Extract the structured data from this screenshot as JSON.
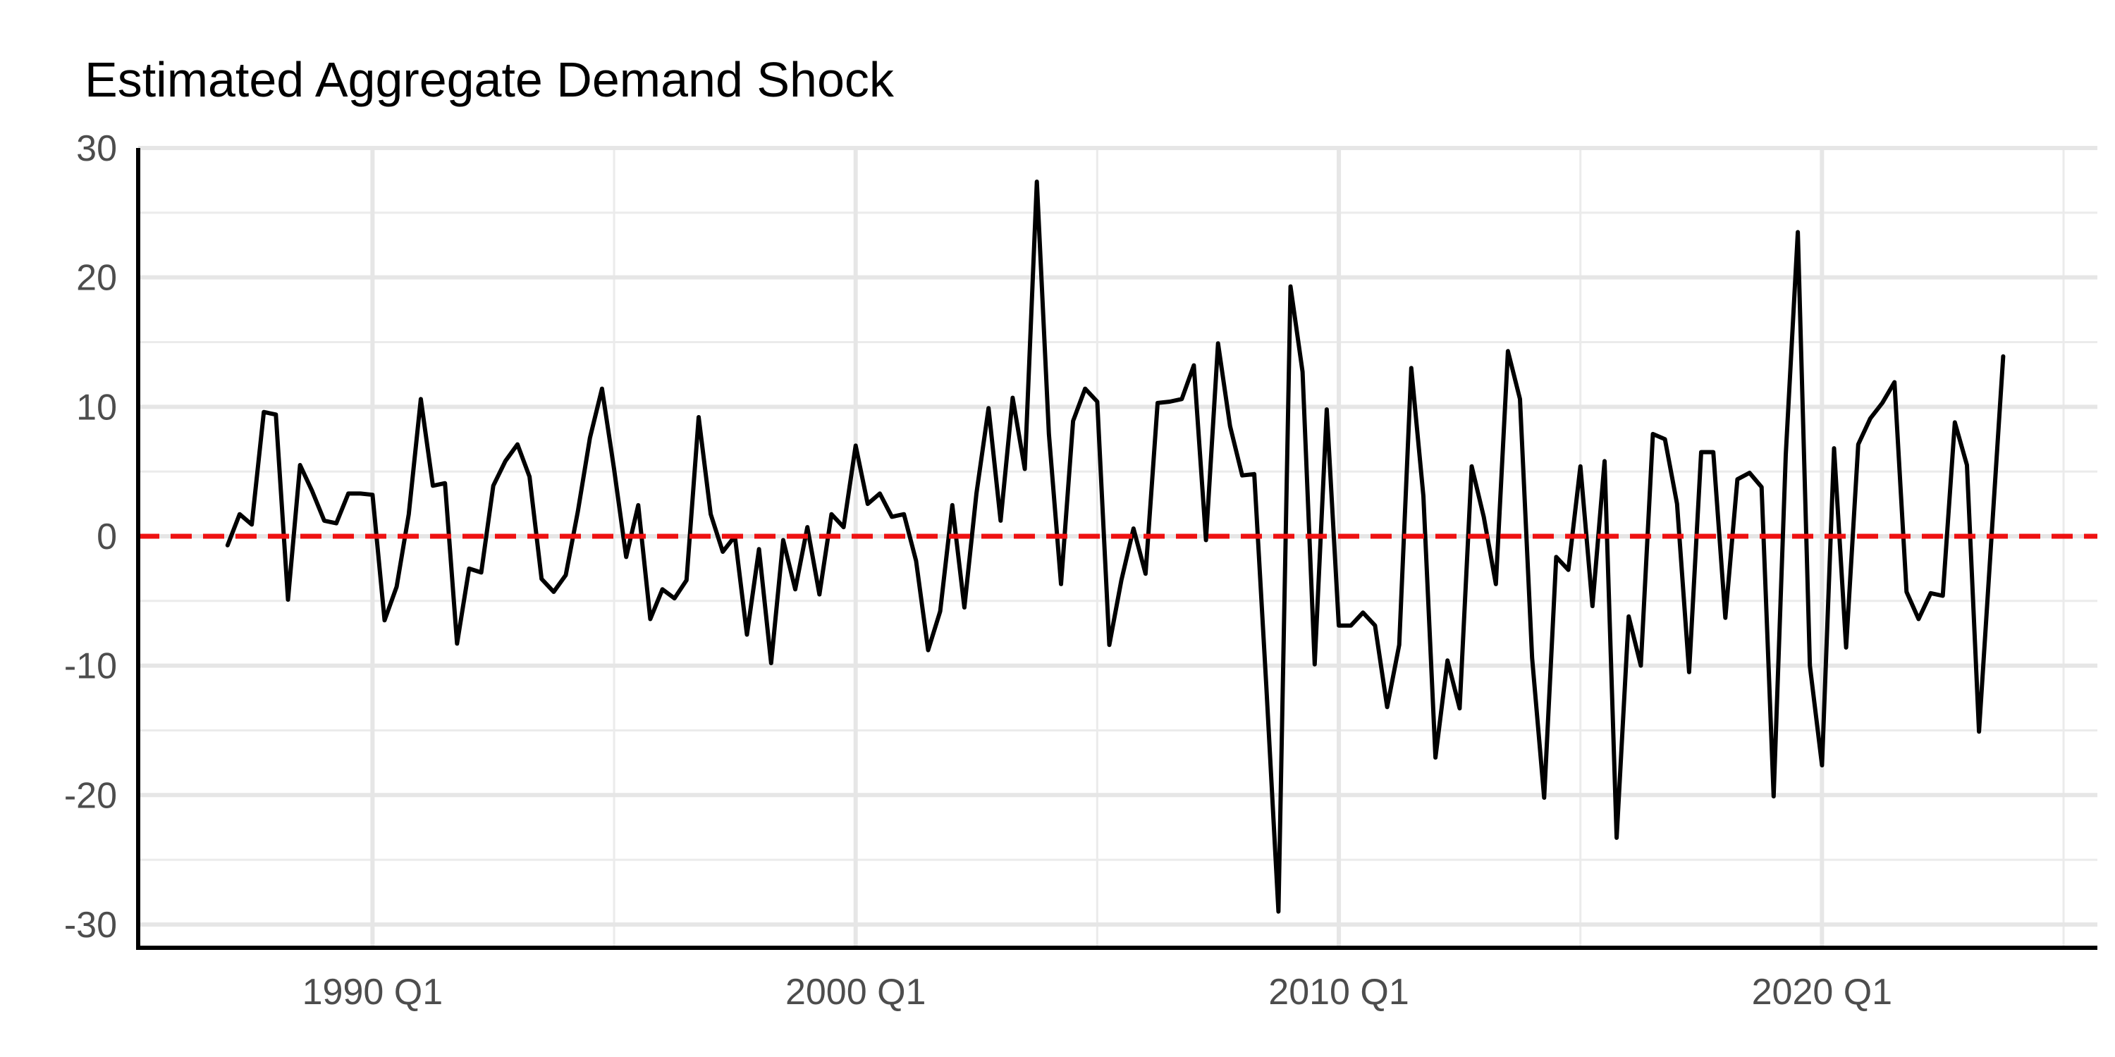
{
  "chart_data": {
    "type": "line",
    "title": "Estimated Aggregate Demand Shock",
    "xlabel": "",
    "ylabel": "",
    "xlim": [
      1985.15,
      2025.7
    ],
    "ylim": [
      -31.8,
      30
    ],
    "x_ticks": [
      {
        "value": 1990.0,
        "label": "1990 Q1"
      },
      {
        "value": 2000.0,
        "label": "2000 Q1"
      },
      {
        "value": 2010.0,
        "label": "2010 Q1"
      },
      {
        "value": 2020.0,
        "label": "2020 Q1"
      }
    ],
    "x_minor_ticks": [
      1995.0,
      2005.0,
      2015.0,
      2025.0
    ],
    "y_ticks": [
      {
        "value": 30,
        "label": "30"
      },
      {
        "value": 20,
        "label": "20"
      },
      {
        "value": 10,
        "label": "10"
      },
      {
        "value": 0,
        "label": "0"
      },
      {
        "value": -10,
        "label": "-10"
      },
      {
        "value": -20,
        "label": "-20"
      },
      {
        "value": -30,
        "label": "-30"
      }
    ],
    "y_minor_ticks": [
      25,
      15,
      5,
      -5,
      -15,
      -25
    ],
    "grid": true,
    "reference_line": {
      "y": 0,
      "color": "#ee1111",
      "style": "dashed"
    },
    "series": [
      {
        "color": "#000000",
        "points": [
          [
            1987.0,
            -0.7
          ],
          [
            1987.25,
            1.7
          ],
          [
            1987.5,
            0.9
          ],
          [
            1987.75,
            9.6
          ],
          [
            1988.0,
            9.4
          ],
          [
            1988.25,
            -4.9
          ],
          [
            1988.5,
            5.5
          ],
          [
            1988.75,
            3.5
          ],
          [
            1989.0,
            1.2
          ],
          [
            1989.25,
            1.0
          ],
          [
            1989.5,
            3.3
          ],
          [
            1989.75,
            3.3
          ],
          [
            1990.0,
            3.2
          ],
          [
            1990.25,
            -6.5
          ],
          [
            1990.5,
            -3.9
          ],
          [
            1990.75,
            1.7
          ],
          [
            1991.0,
            10.6
          ],
          [
            1991.25,
            3.9
          ],
          [
            1991.5,
            4.1
          ],
          [
            1991.75,
            -8.3
          ],
          [
            1992.0,
            -2.5
          ],
          [
            1992.25,
            -2.8
          ],
          [
            1992.5,
            3.9
          ],
          [
            1992.75,
            5.8
          ],
          [
            1993.0,
            7.1
          ],
          [
            1993.25,
            4.6
          ],
          [
            1993.5,
            -3.3
          ],
          [
            1993.75,
            -4.3
          ],
          [
            1994.0,
            -3.0
          ],
          [
            1994.25,
            1.9
          ],
          [
            1994.5,
            7.6
          ],
          [
            1994.75,
            11.4
          ],
          [
            1995.0,
            5.2
          ],
          [
            1995.25,
            -1.6
          ],
          [
            1995.5,
            2.4
          ],
          [
            1995.75,
            -6.4
          ],
          [
            1996.0,
            -4.1
          ],
          [
            1996.25,
            -4.8
          ],
          [
            1996.5,
            -3.4
          ],
          [
            1996.75,
            9.2
          ],
          [
            1997.0,
            1.7
          ],
          [
            1997.25,
            -1.2
          ],
          [
            1997.5,
            0.0
          ],
          [
            1997.75,
            -7.6
          ],
          [
            1998.0,
            -1.0
          ],
          [
            1998.25,
            -9.8
          ],
          [
            1998.5,
            -0.3
          ],
          [
            1998.75,
            -4.1
          ],
          [
            1999.0,
            0.7
          ],
          [
            1999.25,
            -4.5
          ],
          [
            1999.5,
            1.7
          ],
          [
            1999.75,
            0.7
          ],
          [
            2000.0,
            7.0
          ],
          [
            2000.25,
            2.5
          ],
          [
            2000.5,
            3.3
          ],
          [
            2000.75,
            1.5
          ],
          [
            2001.0,
            1.7
          ],
          [
            2001.25,
            -1.9
          ],
          [
            2001.5,
            -8.8
          ],
          [
            2001.75,
            -5.8
          ],
          [
            2002.0,
            2.4
          ],
          [
            2002.25,
            -5.5
          ],
          [
            2002.5,
            3.3
          ],
          [
            2002.75,
            9.9
          ],
          [
            2003.0,
            1.2
          ],
          [
            2003.25,
            10.7
          ],
          [
            2003.5,
            5.2
          ],
          [
            2003.75,
            27.4
          ],
          [
            2004.0,
            7.9
          ],
          [
            2004.25,
            -3.7
          ],
          [
            2004.5,
            8.9
          ],
          [
            2004.75,
            11.4
          ],
          [
            2005.0,
            10.4
          ],
          [
            2005.25,
            -8.4
          ],
          [
            2005.5,
            -3.4
          ],
          [
            2005.75,
            0.6
          ],
          [
            2006.0,
            -2.9
          ],
          [
            2006.25,
            10.3
          ],
          [
            2006.5,
            10.4
          ],
          [
            2006.75,
            10.6
          ],
          [
            2007.0,
            13.2
          ],
          [
            2007.25,
            -0.3
          ],
          [
            2007.5,
            14.9
          ],
          [
            2007.75,
            8.5
          ],
          [
            2008.0,
            4.7
          ],
          [
            2008.25,
            4.8
          ],
          [
            2008.5,
            -11.6
          ],
          [
            2008.75,
            -29.0
          ],
          [
            2009.0,
            19.3
          ],
          [
            2009.25,
            12.7
          ],
          [
            2009.5,
            -9.9
          ],
          [
            2009.75,
            9.8
          ],
          [
            2010.0,
            -6.9
          ],
          [
            2010.25,
            -6.9
          ],
          [
            2010.5,
            -5.9
          ],
          [
            2010.75,
            -6.9
          ],
          [
            2011.0,
            -13.2
          ],
          [
            2011.25,
            -8.4
          ],
          [
            2011.5,
            13.0
          ],
          [
            2011.75,
            3.1
          ],
          [
            2012.0,
            -17.1
          ],
          [
            2012.25,
            -9.6
          ],
          [
            2012.5,
            -13.3
          ],
          [
            2012.75,
            5.4
          ],
          [
            2013.0,
            1.5
          ],
          [
            2013.25,
            -3.7
          ],
          [
            2013.5,
            14.3
          ],
          [
            2013.75,
            10.6
          ],
          [
            2014.0,
            -9.4
          ],
          [
            2014.25,
            -20.2
          ],
          [
            2014.5,
            -1.6
          ],
          [
            2014.75,
            -2.6
          ],
          [
            2015.0,
            5.4
          ],
          [
            2015.25,
            -5.4
          ],
          [
            2015.5,
            5.8
          ],
          [
            2015.75,
            -23.3
          ],
          [
            2016.0,
            -6.2
          ],
          [
            2016.25,
            -10.0
          ],
          [
            2016.5,
            7.9
          ],
          [
            2016.75,
            7.5
          ],
          [
            2017.0,
            2.5
          ],
          [
            2017.25,
            -10.5
          ],
          [
            2017.5,
            6.5
          ],
          [
            2017.75,
            6.5
          ],
          [
            2018.0,
            -6.3
          ],
          [
            2018.25,
            4.4
          ],
          [
            2018.5,
            4.9
          ],
          [
            2018.75,
            3.8
          ],
          [
            2019.0,
            -20.1
          ],
          [
            2019.25,
            6.3
          ],
          [
            2019.5,
            23.5
          ],
          [
            2019.75,
            -10.0
          ],
          [
            2020.0,
            -17.7
          ],
          [
            2020.25,
            6.8
          ],
          [
            2020.5,
            -8.6
          ],
          [
            2020.75,
            7.1
          ],
          [
            2021.0,
            9.1
          ],
          [
            2021.25,
            10.3
          ],
          [
            2021.5,
            11.9
          ],
          [
            2021.75,
            -4.3
          ],
          [
            2022.0,
            -6.4
          ],
          [
            2022.25,
            -4.4
          ],
          [
            2022.5,
            -4.6
          ],
          [
            2022.75,
            8.8
          ],
          [
            2023.0,
            5.5
          ],
          [
            2023.25,
            -15.1
          ],
          [
            2023.5,
            -0.6
          ],
          [
            2023.75,
            13.9
          ]
        ]
      }
    ]
  }
}
